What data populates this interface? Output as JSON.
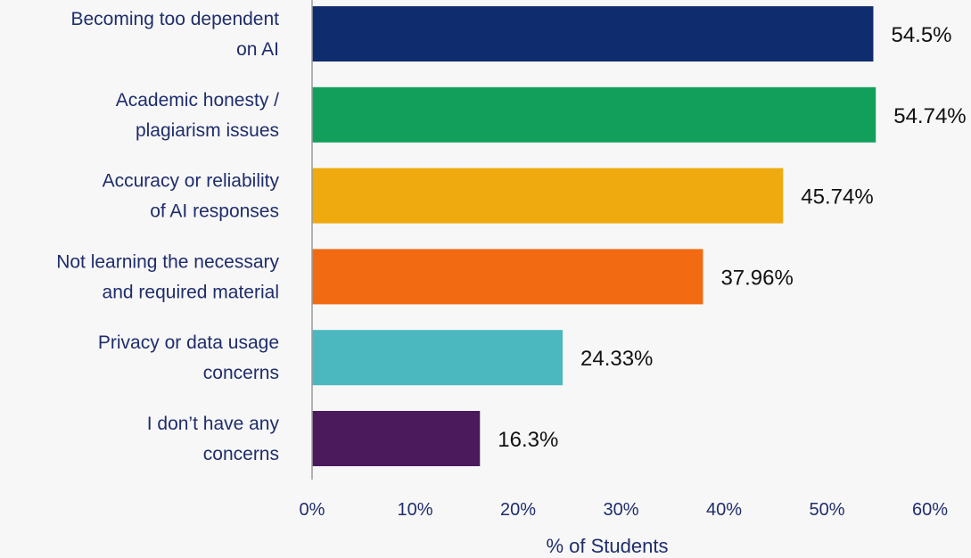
{
  "chart_data": {
    "type": "bar",
    "orientation": "horizontal",
    "categories": [
      [
        "Becoming too dependent",
        "on AI"
      ],
      [
        "Academic honesty /",
        "plagiarism issues"
      ],
      [
        "Accuracy or reliability",
        "of AI responses"
      ],
      [
        "Not learning the necessary",
        "and required material"
      ],
      [
        "Privacy or data usage",
        "concerns"
      ],
      [
        "I don’t have any",
        "concerns"
      ]
    ],
    "values": [
      54.5,
      54.74,
      45.74,
      37.96,
      24.33,
      16.3
    ],
    "value_labels": [
      "54.5%",
      "54.74%",
      "45.74%",
      "37.96%",
      "24.33%",
      "16.3%"
    ],
    "colors": [
      "#0f2c6e",
      "#129f5b",
      "#efaa0f",
      "#f26a12",
      "#4bb8c0",
      "#4a1a5c"
    ],
    "xlabel": "% of Students",
    "ylabel": "",
    "xlim": [
      0,
      60
    ],
    "xticks": [
      0,
      10,
      20,
      30,
      40,
      50,
      60
    ],
    "xtick_labels": [
      "0%",
      "10%",
      "20%",
      "30%",
      "40%",
      "50%",
      "60%"
    ],
    "axis_line_color": "#9a9a9a",
    "grid": false,
    "legend": "none"
  }
}
